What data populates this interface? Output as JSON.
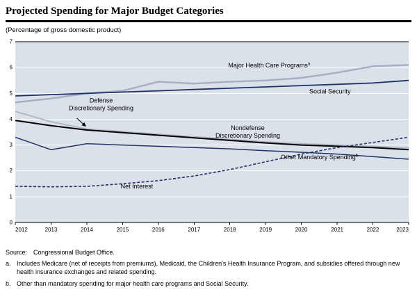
{
  "chart_data": {
    "type": "line",
    "title": "Projected Spending for Major Budget Categories",
    "subtitle": "(Percentage of gross domestic product)",
    "xlabel": "",
    "ylabel": "Percentage of gross domestic product",
    "x": [
      2012,
      2013,
      2014,
      2015,
      2016,
      2017,
      2018,
      2019,
      2020,
      2021,
      2022,
      2023
    ],
    "ylim": [
      0,
      7
    ],
    "yticks": [
      0,
      1,
      2,
      3,
      4,
      5,
      6,
      7
    ],
    "plot_background": "#dbe1e8",
    "gridline_color": "#ffffff",
    "grid": "horizontal",
    "legend": "inline-annotations",
    "series": [
      {
        "id": "defense-discretionary",
        "name": "Defense Discretionary Spending",
        "color": "#aeb6c2",
        "width": 1.8,
        "dash": null,
        "values": [
          4.3,
          3.9,
          3.62,
          3.52,
          3.42,
          3.32,
          3.22,
          3.12,
          3.05,
          3.0,
          2.95,
          2.88
        ]
      },
      {
        "id": "major-health-care-programs",
        "name": "Major Health Care Programs",
        "footnote": "a",
        "color": "#a5afc3",
        "width": 2.4,
        "dash": null,
        "values": [
          4.65,
          4.8,
          5.0,
          5.1,
          5.45,
          5.38,
          5.45,
          5.5,
          5.6,
          5.8,
          6.05,
          6.1
        ]
      },
      {
        "id": "nondefense-discretionary",
        "name": "Nondefense Discretionary Spending",
        "color": "#000000",
        "width": 2.0,
        "dash": null,
        "values": [
          3.95,
          3.75,
          3.58,
          3.48,
          3.38,
          3.28,
          3.18,
          3.08,
          3.0,
          2.95,
          2.9,
          2.82
        ]
      },
      {
        "id": "social-security",
        "name": "Social Security",
        "color": "#1f3168",
        "width": 1.8,
        "dash": null,
        "values": [
          4.9,
          4.95,
          5.0,
          5.05,
          5.1,
          5.15,
          5.2,
          5.25,
          5.3,
          5.35,
          5.4,
          5.5
        ]
      },
      {
        "id": "other-mandatory",
        "name": "Other Mandatory Spending",
        "footnote": "b",
        "color": "#1f3168",
        "width": 1.5,
        "dash": null,
        "values": [
          3.3,
          2.82,
          3.05,
          3.0,
          2.95,
          2.9,
          2.85,
          2.78,
          2.72,
          2.65,
          2.55,
          2.45
        ]
      },
      {
        "id": "net-interest",
        "name": "Net Interest",
        "color": "#1f3168",
        "width": 1.6,
        "dash": "4,2.5",
        "values": [
          1.4,
          1.38,
          1.4,
          1.5,
          1.62,
          1.8,
          2.05,
          2.35,
          2.65,
          2.9,
          3.1,
          3.3
        ]
      }
    ],
    "annotations": [
      {
        "lines": [
          "Major Health Care Programs"
        ],
        "sup": "a",
        "x": 2019.1,
        "y": 6.0
      },
      {
        "lines": [
          "Social Security"
        ],
        "x": 2020.8,
        "y": 5.0
      },
      {
        "lines": [
          "Defense",
          "Discretionary Spending"
        ],
        "x": 2014.4,
        "y": 4.65,
        "arrow": {
          "from": [
            2013.72,
            4.04
          ],
          "to": [
            2013.97,
            3.72
          ]
        }
      },
      {
        "lines": [
          "Nondefense",
          "Discretionary Spending"
        ],
        "x": 2018.5,
        "y": 3.58
      },
      {
        "lines": [
          "Other Mandatory Spending"
        ],
        "sup": "b",
        "x": 2020.5,
        "y": 2.45
      },
      {
        "lines": [
          "Net Interest"
        ],
        "x": 2015.4,
        "y": 1.32
      }
    ]
  },
  "footer": {
    "source_label": "Source:",
    "source_text": "Congressional Budget Office.",
    "footnote_a_label": "a.",
    "footnote_a": "Includes Medicare (net of receipts from premiums), Medicaid, the Children's Health Insurance Program, and subsidies offered through new health insurance exchanges and related spending.",
    "footnote_b_label": "b.",
    "footnote_b": "Other than mandatory spending for major health care programs and Social Security."
  }
}
